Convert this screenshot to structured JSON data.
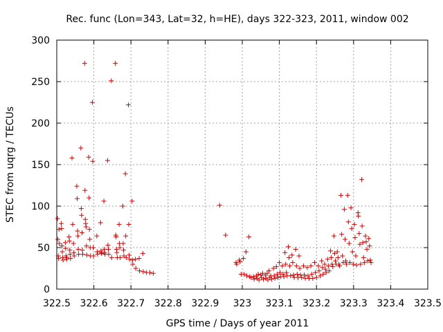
{
  "chart_data": {
    "type": "scatter",
    "title": "Rec. func (Lon=343, Lat=32, h=HE), days 322-323, 2011, window 002",
    "xlabel": "GPS time / Days of year 2011",
    "ylabel": "STEC from uqrg / TECUs",
    "xlim": [
      322.5,
      323.5
    ],
    "ylim": [
      0,
      300
    ],
    "xticks": [
      "322.5",
      "322.6",
      "322.7",
      "322.8",
      "322.9",
      "323",
      "323.1",
      "323.2",
      "323.3",
      "323.4",
      "323.5"
    ],
    "yticks": [
      "0",
      "50",
      "100",
      "150",
      "200",
      "250",
      "300"
    ],
    "grid": true,
    "marker": "+",
    "color": "#cc0000",
    "series": [
      {
        "name": "STEC",
        "points": [
          [
            322.502,
            85
          ],
          [
            322.503,
            60
          ],
          [
            322.504,
            40
          ],
          [
            322.505,
            37
          ],
          [
            322.506,
            72
          ],
          [
            322.507,
            55
          ],
          [
            322.512,
            79
          ],
          [
            322.513,
            73
          ],
          [
            322.514,
            52
          ],
          [
            322.515,
            45
          ],
          [
            322.516,
            38
          ],
          [
            322.517,
            35
          ],
          [
            322.523,
            56
          ],
          [
            322.524,
            49
          ],
          [
            322.525,
            40
          ],
          [
            322.526,
            38
          ],
          [
            322.527,
            36
          ],
          [
            322.533,
            63
          ],
          [
            322.534,
            58
          ],
          [
            322.535,
            47
          ],
          [
            322.536,
            42
          ],
          [
            322.537,
            37
          ],
          [
            322.541,
            158
          ],
          [
            322.543,
            78
          ],
          [
            322.545,
            55
          ],
          [
            322.546,
            44
          ],
          [
            322.547,
            40
          ],
          [
            322.554,
            124
          ],
          [
            322.555,
            109
          ],
          [
            322.556,
            70
          ],
          [
            322.557,
            64
          ],
          [
            322.558,
            48
          ],
          [
            322.559,
            42
          ],
          [
            322.565,
            170
          ],
          [
            322.566,
            97
          ],
          [
            322.567,
            89
          ],
          [
            322.568,
            68
          ],
          [
            322.569,
            47
          ],
          [
            322.57,
            42
          ],
          [
            322.575,
            272
          ],
          [
            322.576,
            119
          ],
          [
            322.577,
            84
          ],
          [
            322.578,
            79
          ],
          [
            322.579,
            75
          ],
          [
            322.58,
            52
          ],
          [
            322.581,
            41
          ],
          [
            322.586,
            159
          ],
          [
            322.587,
            110
          ],
          [
            322.588,
            72
          ],
          [
            322.589,
            60
          ],
          [
            322.59,
            50
          ],
          [
            322.591,
            40
          ],
          [
            322.596,
            225
          ],
          [
            322.597,
            154
          ],
          [
            322.598,
            50
          ],
          [
            322.599,
            40
          ],
          [
            322.608,
            64
          ],
          [
            322.609,
            45
          ],
          [
            322.61,
            42
          ],
          [
            322.618,
            80
          ],
          [
            322.619,
            46
          ],
          [
            322.62,
            44
          ],
          [
            322.621,
            43
          ],
          [
            322.627,
            106
          ],
          [
            322.628,
            48
          ],
          [
            322.629,
            44
          ],
          [
            322.63,
            42
          ],
          [
            322.637,
            155
          ],
          [
            322.638,
            53
          ],
          [
            322.639,
            48
          ],
          [
            322.64,
            42
          ],
          [
            322.647,
            251
          ],
          [
            322.648,
            38
          ],
          [
            322.658,
            272
          ],
          [
            322.659,
            65
          ],
          [
            322.66,
            63
          ],
          [
            322.661,
            48
          ],
          [
            322.662,
            44
          ],
          [
            322.663,
            38
          ],
          [
            322.668,
            78
          ],
          [
            322.669,
            55
          ],
          [
            322.67,
            50
          ],
          [
            322.671,
            38
          ],
          [
            322.678,
            100
          ],
          [
            322.679,
            55
          ],
          [
            322.68,
            47
          ],
          [
            322.681,
            40
          ],
          [
            322.685,
            139
          ],
          [
            322.686,
            64
          ],
          [
            322.687,
            38
          ],
          [
            322.693,
            222
          ],
          [
            322.694,
            78
          ],
          [
            322.695,
            41
          ],
          [
            322.696,
            36
          ],
          [
            322.703,
            106
          ],
          [
            322.704,
            35
          ],
          [
            322.705,
            30
          ],
          [
            322.712,
            36
          ],
          [
            322.713,
            25
          ],
          [
            322.722,
            37
          ],
          [
            322.723,
            22
          ],
          [
            322.732,
            43
          ],
          [
            322.733,
            21
          ],
          [
            322.742,
            20
          ],
          [
            322.751,
            20
          ],
          [
            322.76,
            19
          ],
          [
            322.939,
            101
          ],
          [
            322.955,
            65
          ],
          [
            322.983,
            32
          ],
          [
            322.985,
            30
          ],
          [
            322.992,
            35
          ],
          [
            322.994,
            33
          ],
          [
            322.997,
            18
          ],
          [
            323.003,
            37
          ],
          [
            323.005,
            18
          ],
          [
            323.01,
            45
          ],
          [
            323.012,
            16
          ],
          [
            323.018,
            63
          ],
          [
            323.02,
            15
          ],
          [
            323.024,
            14
          ],
          [
            323.03,
            15
          ],
          [
            323.032,
            12
          ],
          [
            323.038,
            16
          ],
          [
            323.04,
            13
          ],
          [
            323.043,
            18
          ],
          [
            323.045,
            11
          ],
          [
            323.05,
            17
          ],
          [
            323.052,
            14
          ],
          [
            323.055,
            19
          ],
          [
            323.057,
            12
          ],
          [
            323.062,
            17
          ],
          [
            323.064,
            13
          ],
          [
            323.067,
            19
          ],
          [
            323.069,
            11
          ],
          [
            323.072,
            22
          ],
          [
            323.074,
            14
          ],
          [
            323.077,
            16
          ],
          [
            323.079,
            12
          ],
          [
            323.084,
            25
          ],
          [
            323.086,
            16
          ],
          [
            323.088,
            13
          ],
          [
            323.092,
            27
          ],
          [
            323.094,
            18
          ],
          [
            323.096,
            14
          ],
          [
            323.1,
            32
          ],
          [
            323.102,
            20
          ],
          [
            323.104,
            15
          ],
          [
            323.108,
            28
          ],
          [
            323.11,
            18
          ],
          [
            323.112,
            15
          ],
          [
            323.115,
            44
          ],
          [
            323.117,
            30
          ],
          [
            323.119,
            20
          ],
          [
            323.121,
            16
          ],
          [
            323.124,
            51
          ],
          [
            323.126,
            38
          ],
          [
            323.128,
            28
          ],
          [
            323.13,
            16
          ],
          [
            323.134,
            41
          ],
          [
            323.136,
            32
          ],
          [
            323.138,
            17
          ],
          [
            323.14,
            14
          ],
          [
            323.144,
            48
          ],
          [
            323.146,
            28
          ],
          [
            323.148,
            18
          ],
          [
            323.15,
            14
          ],
          [
            323.153,
            40
          ],
          [
            323.155,
            25
          ],
          [
            323.157,
            17
          ],
          [
            323.16,
            14
          ],
          [
            323.165,
            28
          ],
          [
            323.167,
            17
          ],
          [
            323.17,
            13
          ],
          [
            323.175,
            26
          ],
          [
            323.177,
            16
          ],
          [
            323.18,
            13
          ],
          [
            323.185,
            28
          ],
          [
            323.187,
            18
          ],
          [
            323.19,
            13
          ],
          [
            323.195,
            32
          ],
          [
            323.197,
            20
          ],
          [
            323.2,
            14
          ],
          [
            323.205,
            28
          ],
          [
            323.207,
            22
          ],
          [
            323.21,
            16
          ],
          [
            323.214,
            34
          ],
          [
            323.216,
            26
          ],
          [
            323.218,
            18
          ],
          [
            323.222,
            30
          ],
          [
            323.224,
            24
          ],
          [
            323.226,
            20
          ],
          [
            323.23,
            36
          ],
          [
            323.232,
            28
          ],
          [
            323.234,
            22
          ],
          [
            323.238,
            46
          ],
          [
            323.24,
            38
          ],
          [
            323.242,
            30
          ],
          [
            323.244,
            27
          ],
          [
            323.247,
            64
          ],
          [
            323.249,
            43
          ],
          [
            323.251,
            34
          ],
          [
            323.253,
            30
          ],
          [
            323.256,
            45
          ],
          [
            323.258,
            38
          ],
          [
            323.26,
            30
          ],
          [
            323.262,
            28
          ],
          [
            323.266,
            113
          ],
          [
            323.268,
            66
          ],
          [
            323.27,
            40
          ],
          [
            323.272,
            32
          ],
          [
            323.275,
            96
          ],
          [
            323.277,
            60
          ],
          [
            323.279,
            34
          ],
          [
            323.281,
            30
          ],
          [
            323.284,
            113
          ],
          [
            323.286,
            81
          ],
          [
            323.288,
            55
          ],
          [
            323.29,
            32
          ],
          [
            323.293,
            98
          ],
          [
            323.295,
            73
          ],
          [
            323.297,
            45
          ],
          [
            323.299,
            30
          ],
          [
            323.302,
            78
          ],
          [
            323.304,
            62
          ],
          [
            323.306,
            40
          ],
          [
            323.308,
            29
          ],
          [
            323.312,
            92
          ],
          [
            323.313,
            88
          ],
          [
            323.315,
            67
          ],
          [
            323.317,
            54
          ],
          [
            323.319,
            30
          ],
          [
            323.322,
            132
          ],
          [
            323.323,
            76
          ],
          [
            323.325,
            56
          ],
          [
            323.327,
            38
          ],
          [
            323.329,
            32
          ],
          [
            323.332,
            64
          ],
          [
            323.334,
            57
          ],
          [
            323.336,
            48
          ],
          [
            323.338,
            34
          ],
          [
            323.341,
            61
          ],
          [
            323.343,
            52
          ],
          [
            323.345,
            35
          ],
          [
            323.347,
            32
          ]
        ]
      }
    ]
  }
}
